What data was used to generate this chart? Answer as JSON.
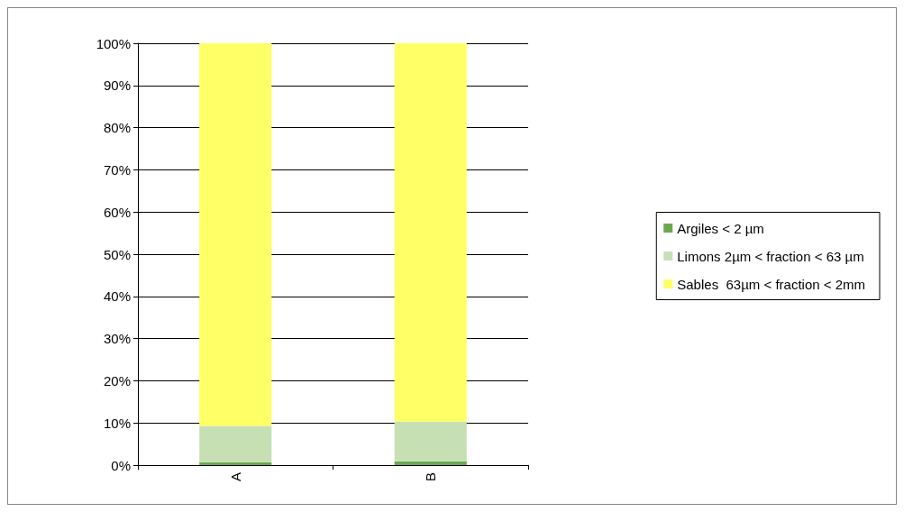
{
  "chart_data": {
    "type": "bar",
    "stacked": true,
    "categories": [
      "A",
      "B"
    ],
    "series": [
      {
        "name": "Argiles < 2 µm",
        "color": "#6aa84f",
        "values": [
          0.7,
          0.9
        ]
      },
      {
        "name": "Limons 2µm < fraction < 63 µm",
        "color": "#c6e0b4",
        "values": [
          8.6,
          9.4
        ]
      },
      {
        "name": "Sables  63µm < fraction < 2mm",
        "color": "#ffff66",
        "values": [
          90.7,
          89.7
        ]
      }
    ],
    "ylim": [
      0,
      100
    ],
    "yticks": [
      {
        "value": 0,
        "label": "0%"
      },
      {
        "value": 10,
        "label": "10%"
      },
      {
        "value": 20,
        "label": "20%"
      },
      {
        "value": 30,
        "label": "30%"
      },
      {
        "value": 40,
        "label": "40%"
      },
      {
        "value": 50,
        "label": "50%"
      },
      {
        "value": 60,
        "label": "60%"
      },
      {
        "value": 70,
        "label": "70%"
      },
      {
        "value": 80,
        "label": "80%"
      },
      {
        "value": 90,
        "label": "90%"
      },
      {
        "value": 100,
        "label": "100%"
      }
    ],
    "grid": "y",
    "legend": "right"
  }
}
